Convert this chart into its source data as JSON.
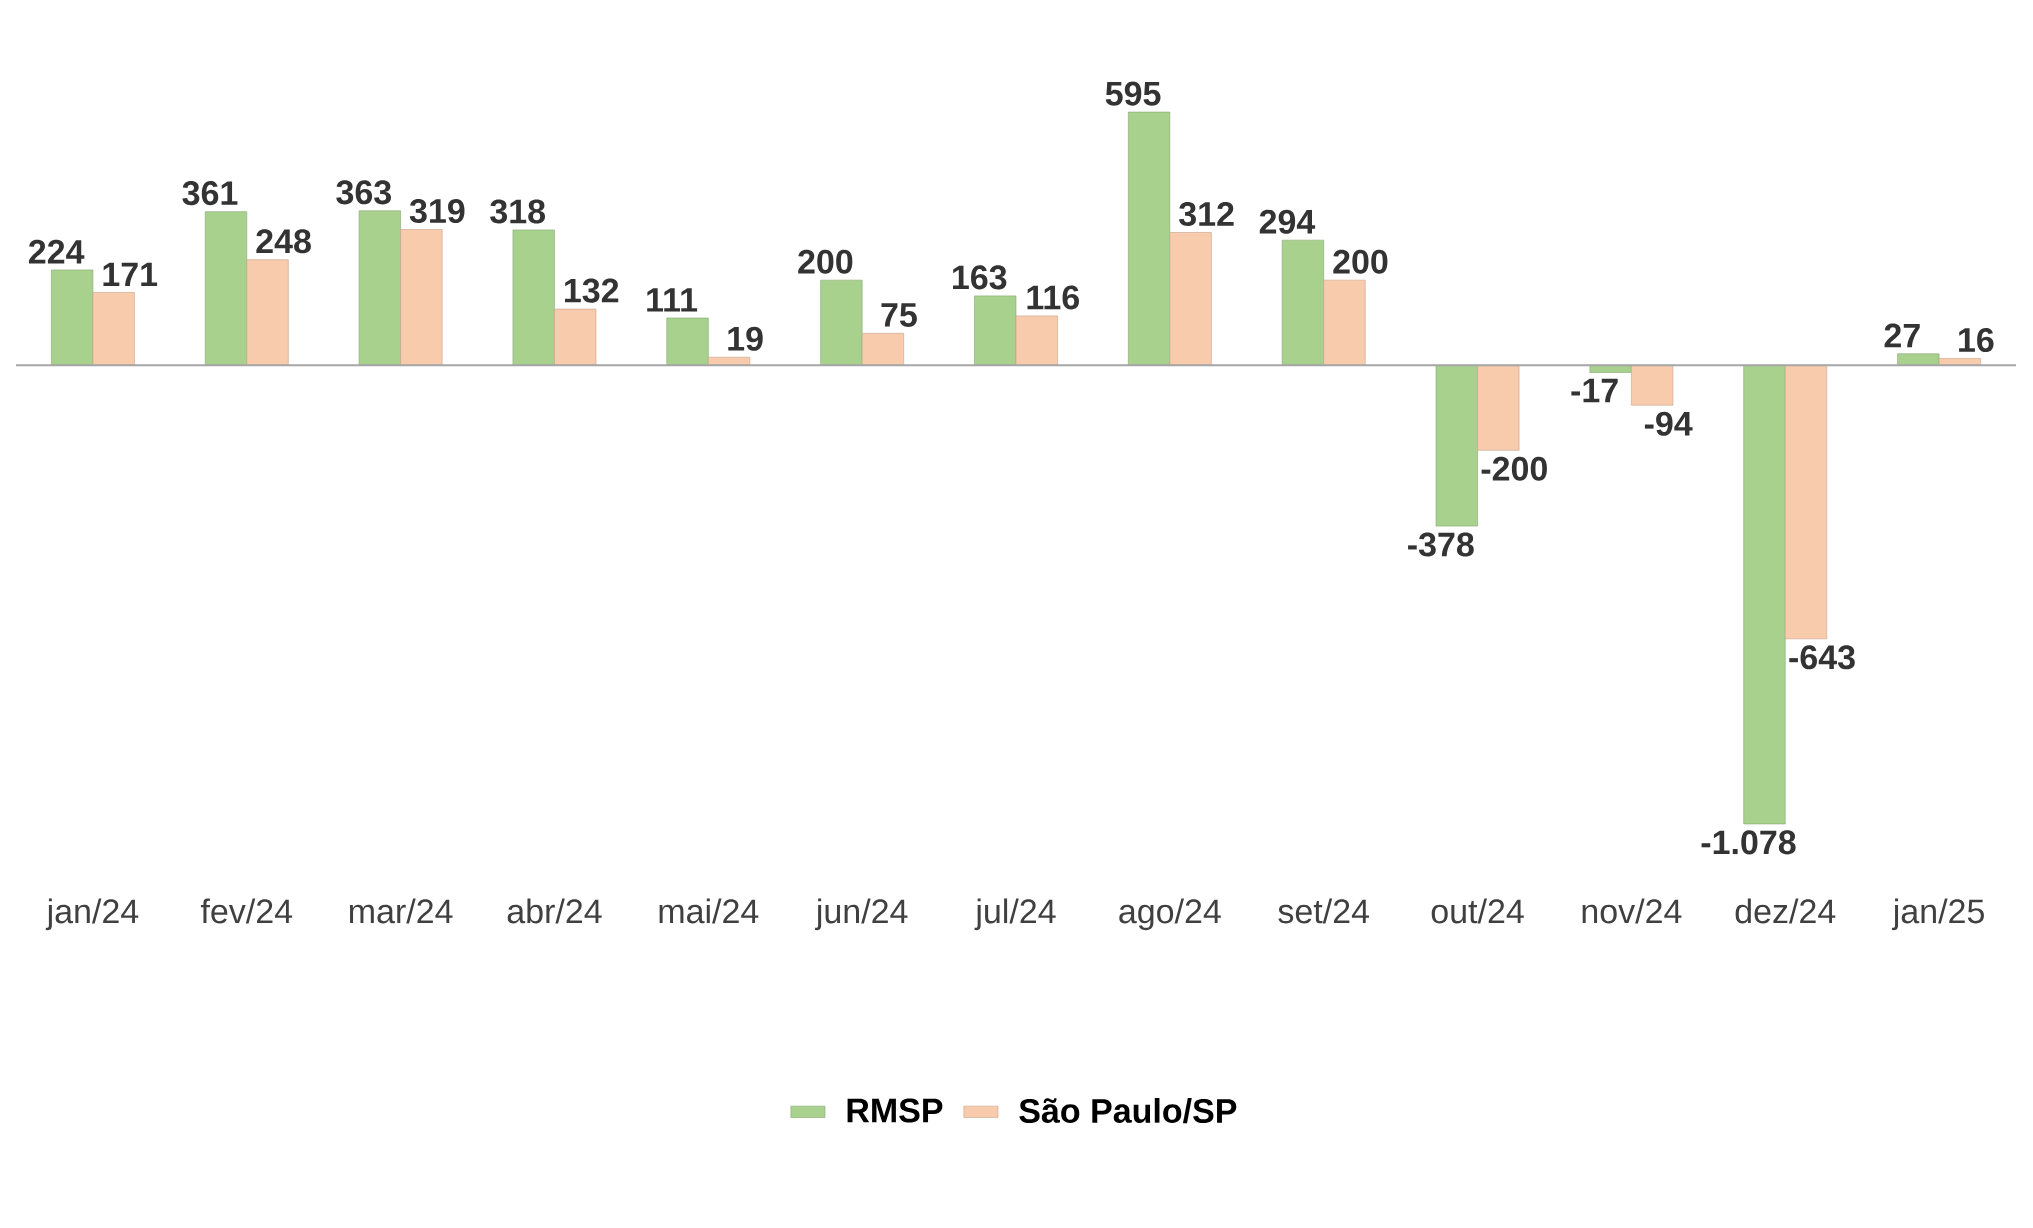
{
  "chart_data": {
    "type": "bar",
    "categories": [
      "jan/24",
      "fev/24",
      "mar/24",
      "abr/24",
      "mai/24",
      "jun/24",
      "jul/24",
      "ago/24",
      "set/24",
      "out/24",
      "nov/24",
      "dez/24",
      "jan/25"
    ],
    "series": [
      {
        "name": "RMSP",
        "color": "#a9d18e",
        "values": [
          224,
          361,
          363,
          318,
          111,
          200,
          163,
          595,
          294,
          -378,
          -17,
          -1078,
          27
        ],
        "value_labels": [
          "224",
          "361",
          "363",
          "318",
          "111",
          "200",
          "163",
          "595",
          "294",
          "-378",
          "-17",
          "-1.078",
          "27"
        ]
      },
      {
        "name": "São Paulo/SP",
        "color": "#f8cbad",
        "values": [
          171,
          248,
          319,
          132,
          19,
          75,
          116,
          312,
          200,
          -200,
          -94,
          -643,
          16
        ],
        "value_labels": [
          "171",
          "248",
          "319",
          "132",
          "19",
          "75",
          "116",
          "312",
          "200",
          "-200",
          "-94",
          "-643",
          "16"
        ]
      }
    ],
    "legend": "bottom"
  }
}
